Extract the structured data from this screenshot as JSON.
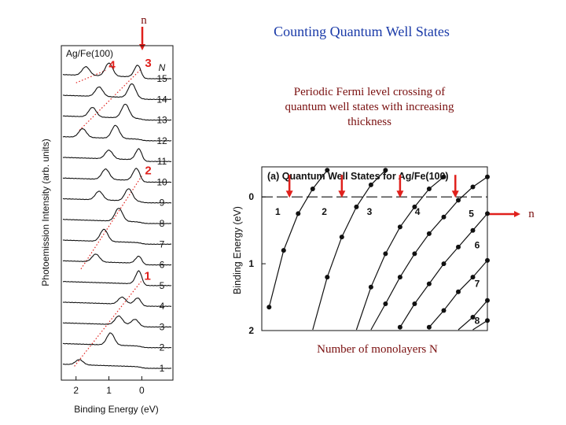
{
  "slide": {
    "title": "Counting Quantum Well States",
    "description": "Periodic Fermi level crossing of quantum well states with increasing thickness",
    "x_caption": "Number of monolayers N",
    "marker_letter": "n"
  },
  "colors": {
    "title": "#1a3aa8",
    "text": "#7a1010",
    "accent": "#e0201c",
    "ink": "#111111"
  },
  "chart_data": [
    {
      "type": "line",
      "panel": "photoemission-spectra",
      "title": "Ag/Fe(100)",
      "xlabel": "Binding Energy (eV)",
      "ylabel": "Photoemission Intensity (arb. units)",
      "xlim": [
        2.4,
        -0.9
      ],
      "x_ticks": [
        2,
        1,
        0
      ],
      "n_header": "N",
      "n_labels": [
        "1",
        "2",
        "3",
        "4",
        "5",
        "6",
        "7",
        "8",
        "9",
        "10",
        "11",
        "12",
        "13",
        "14",
        "15"
      ],
      "series": [
        {
          "label": "1",
          "peaks": [
            {
              "x": 1.9,
              "h": 0.3
            }
          ]
        },
        {
          "label": "2",
          "peaks": [
            {
              "x": 0.95,
              "h": 0.7
            }
          ]
        },
        {
          "label": "3",
          "peaks": [
            {
              "x": 0.7,
              "h": 0.5
            },
            {
              "x": 0.2,
              "h": 0.35
            }
          ]
        },
        {
          "label": "4",
          "peaks": [
            {
              "x": 0.6,
              "h": 0.4
            },
            {
              "x": 0.1,
              "h": 0.45
            }
          ]
        },
        {
          "label": "5",
          "peaks": [
            {
              "x": 0.05,
              "h": 1.0
            }
          ]
        },
        {
          "label": "6",
          "peaks": [
            {
              "x": 1.4,
              "h": 0.45
            },
            {
              "x": 0.05,
              "h": 0.55
            }
          ]
        },
        {
          "label": "7",
          "peaks": [
            {
              "x": 1.15,
              "h": 0.7
            }
          ]
        },
        {
          "label": "8",
          "peaks": [
            {
              "x": 0.7,
              "h": 0.75
            }
          ]
        },
        {
          "label": "9",
          "peaks": [
            {
              "x": 1.3,
              "h": 0.5
            },
            {
              "x": 0.4,
              "h": 0.7
            }
          ]
        },
        {
          "label": "10",
          "peaks": [
            {
              "x": 1.1,
              "h": 0.6
            },
            {
              "x": 0.15,
              "h": 0.75
            }
          ]
        },
        {
          "label": "11",
          "peaks": [
            {
              "x": 1.0,
              "h": 0.5
            },
            {
              "x": 0.05,
              "h": 0.85
            }
          ]
        },
        {
          "label": "12",
          "peaks": [
            {
              "x": 1.8,
              "h": 0.5
            },
            {
              "x": 0.8,
              "h": 0.75
            }
          ]
        },
        {
          "label": "13",
          "peaks": [
            {
              "x": 1.5,
              "h": 0.55
            },
            {
              "x": 0.5,
              "h": 0.8
            }
          ]
        },
        {
          "label": "14",
          "peaks": [
            {
              "x": 1.3,
              "h": 0.55
            },
            {
              "x": 0.3,
              "h": 0.8
            }
          ]
        },
        {
          "label": "15",
          "peaks": [
            {
              "x": 1.7,
              "h": 0.5
            },
            {
              "x": 1.0,
              "h": 0.75
            },
            {
              "x": 0.1,
              "h": 0.8
            }
          ]
        }
      ],
      "guide_lines": [
        {
          "label": "1",
          "points": [
            [
              2.05,
              1.1
            ],
            [
              0.02,
              5.2
            ]
          ]
        },
        {
          "label": "2",
          "points": [
            [
              1.85,
              5.8
            ],
            [
              0.0,
              10.3
            ]
          ]
        },
        {
          "label": "3",
          "points": [
            [
              1.9,
              12.5
            ],
            [
              0.0,
              15.5
            ]
          ]
        },
        {
          "label": "4",
          "points": [
            [
              2.0,
              14.8
            ],
            [
              1.1,
              15.4
            ]
          ]
        }
      ]
    },
    {
      "type": "scatter",
      "panel": "qw-dispersion",
      "title": "(a) Quantum Well States for Ag/Fe(100)",
      "ylabel": "Binding Energy (eV)",
      "ylim": [
        -0.45,
        2.0
      ],
      "xlim": [
        0.5,
        16
      ],
      "y_ticks": [
        0,
        1,
        2
      ],
      "fermi_level": 0,
      "crossings": [
        2.4,
        6.0,
        10.0,
        13.8
      ],
      "series": [
        {
          "label": "1",
          "points": [
            [
              1,
              1.65
            ],
            [
              2,
              0.8
            ],
            [
              3,
              0.25
            ],
            [
              4,
              -0.12
            ],
            [
              5,
              -0.4
            ]
          ]
        },
        {
          "label": "2",
          "points": [
            [
              4,
              2.0
            ],
            [
              5,
              1.2
            ],
            [
              6,
              0.6
            ],
            [
              7,
              0.15
            ],
            [
              8,
              -0.18
            ],
            [
              9,
              -0.4
            ]
          ]
        },
        {
          "label": "3",
          "points": [
            [
              7,
              2.0
            ],
            [
              8,
              1.35
            ],
            [
              9,
              0.85
            ],
            [
              10,
              0.45
            ],
            [
              11,
              0.15
            ],
            [
              12,
              -0.12
            ],
            [
              13,
              -0.3
            ]
          ]
        },
        {
          "label": "4",
          "points": [
            [
              8,
              2.0
            ],
            [
              9,
              1.6
            ],
            [
              10,
              1.2
            ],
            [
              11,
              0.85
            ],
            [
              12,
              0.55
            ],
            [
              13,
              0.3
            ],
            [
              14,
              0.05
            ],
            [
              15,
              -0.15
            ],
            [
              16,
              -0.3
            ]
          ]
        },
        {
          "label": "5",
          "points": [
            [
              10,
              1.95
            ],
            [
              11,
              1.6
            ],
            [
              12,
              1.3
            ],
            [
              13,
              1.0
            ],
            [
              14,
              0.75
            ],
            [
              15,
              0.5
            ],
            [
              16,
              0.25
            ]
          ]
        },
        {
          "label": "6",
          "points": [
            [
              12,
              1.95
            ],
            [
              13,
              1.7
            ],
            [
              14,
              1.42
            ],
            [
              15,
              1.2
            ],
            [
              16,
              0.95
            ]
          ]
        },
        {
          "label": "7",
          "points": [
            [
              14,
              2.0
            ],
            [
              15,
              1.8
            ],
            [
              16,
              1.55
            ]
          ]
        },
        {
          "label": "8",
          "points": [
            [
              15,
              2.05
            ],
            [
              16,
              1.85
            ]
          ]
        }
      ]
    }
  ]
}
